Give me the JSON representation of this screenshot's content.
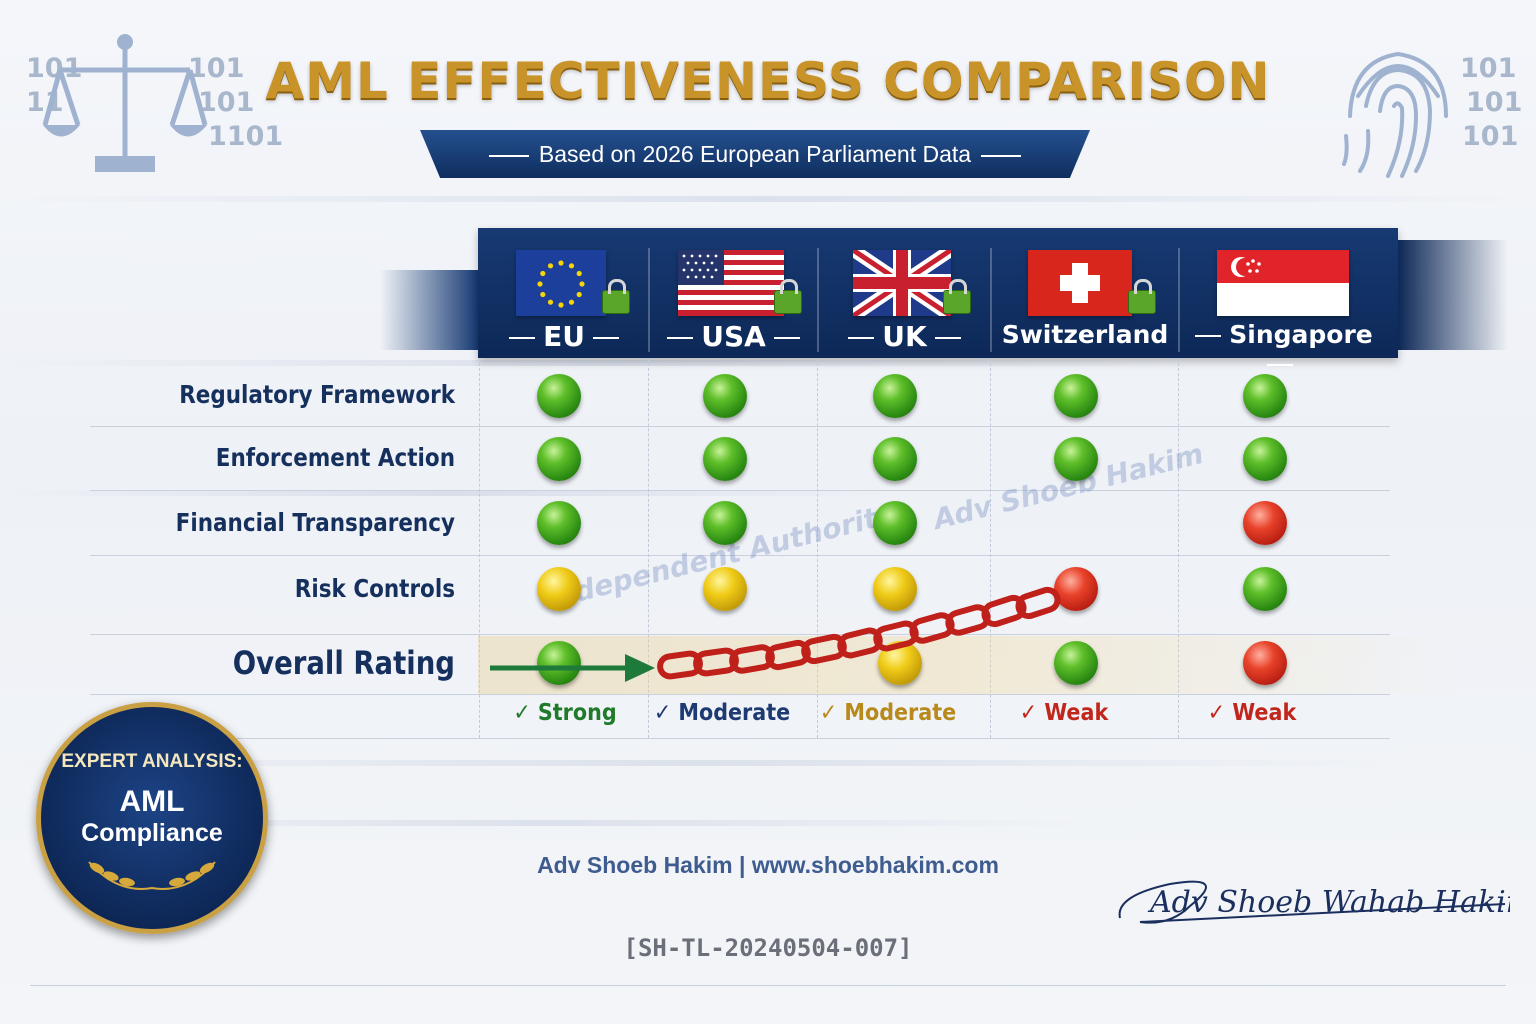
{
  "title": "AML EFFECTIVENESS COMPARISON",
  "subtitle": "Based on 2026 European Parliament Data",
  "decor": {
    "binary_left": [
      "101",
      "11",
      "101",
      "101",
      "1101"
    ],
    "binary_right": [
      "101",
      "101",
      "101"
    ]
  },
  "countries": [
    "EU",
    "USA",
    "UK",
    "Switzerland",
    "Singapore"
  ],
  "rows": [
    {
      "label": "Regulatory Framework",
      "ratings": [
        "green",
        "green",
        "green",
        "green",
        "green"
      ]
    },
    {
      "label": "Enforcement Action",
      "ratings": [
        "green",
        "green",
        "green",
        "green",
        "green"
      ]
    },
    {
      "label": "Financial Transparency",
      "ratings": [
        "green",
        "green",
        "green",
        "none",
        "red"
      ]
    },
    {
      "label": "Risk Controls",
      "ratings": [
        "yellow",
        "yellow",
        "yellow",
        "red",
        "green"
      ]
    }
  ],
  "overall": {
    "label": "Overall Rating",
    "ratings": [
      "green",
      "none",
      "yellow",
      "green",
      "red"
    ],
    "verdicts": [
      {
        "text": "✓ Strong",
        "color": "#1f7a2a"
      },
      {
        "text": "✓ Moderate",
        "color": "#1d3a72"
      },
      {
        "text": "✓ Moderate",
        "color": "#b88a1c"
      },
      {
        "text": "✓ Weak",
        "color": "#c0261c"
      },
      {
        "text": "✓ Weak",
        "color": "#c0261c"
      }
    ]
  },
  "watermark": {
    "line1": "Independent Authority",
    "line2": "Adv Shoeb Hakim"
  },
  "badge": {
    "line1": "EXPERT ANALYSIS:",
    "line2": "AML",
    "line3": "Compliance"
  },
  "footer": "Adv Shoeb Hakim | www.shoebhakim.com",
  "signature": "Adv Shoeb Wahab Hakim",
  "code": "[SH-TL-20240504-007]",
  "icons": [
    "scales-of-justice-icon",
    "fingerprint-icon",
    "padlock-icon",
    "chain-icon",
    "arrow-right-icon",
    "laurel-icon"
  ]
}
